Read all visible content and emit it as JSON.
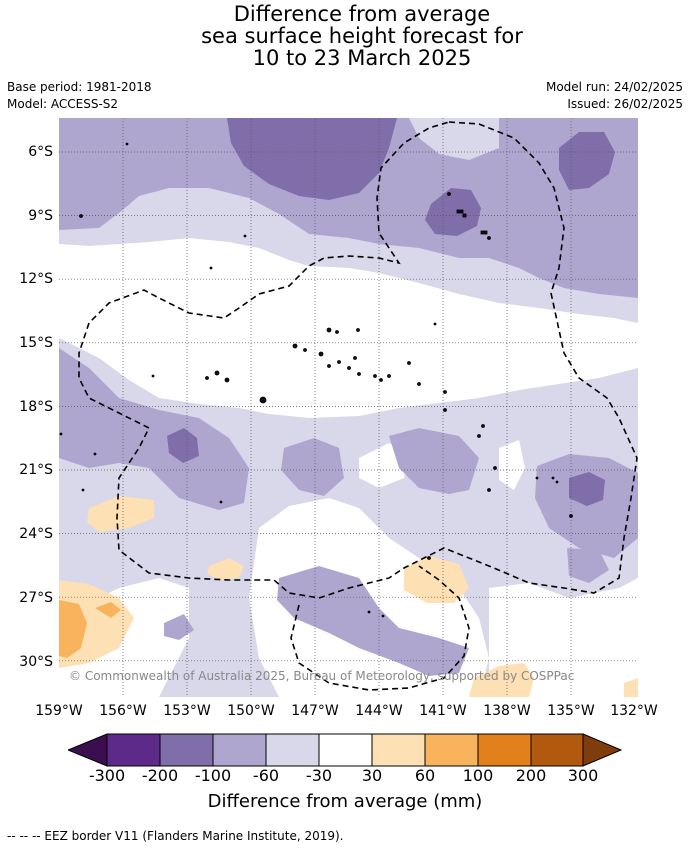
{
  "header": {
    "title_line1": "Difference from average",
    "title_line2": "sea surface height forecast for",
    "title_line3": "10 to 23 March 2025"
  },
  "meta": {
    "base_period": "Base period: 1981-2018",
    "model": "Model: ACCESS-S2",
    "model_run": "Model run: 24/02/2025",
    "issued": "Issued: 26/02/2025"
  },
  "map": {
    "lat_labels": [
      "6°S",
      "9°S",
      "12°S",
      "15°S",
      "18°S",
      "21°S",
      "24°S",
      "27°S",
      "30°S"
    ],
    "lon_labels": [
      "159°W",
      "156°W",
      "153°W",
      "150°W",
      "147°W",
      "144°W",
      "141°W",
      "138°W",
      "135°W",
      "132°W"
    ],
    "copyright": "© Commonwealth of Australia 2025, Bureau of Meteorology, supported by COSPPac"
  },
  "colorbar": {
    "ticks": [
      "-300",
      "-200",
      "-100",
      "-60",
      "-30",
      "30",
      "60",
      "100",
      "200",
      "300"
    ],
    "colors": [
      "#3b0f4f",
      "#5d2a8a",
      "#7f6ea9",
      "#aea6cf",
      "#d8d8ea",
      "#ffffff",
      "#fde0b3",
      "#f9b35c",
      "#e2811c",
      "#b1590f",
      "#7f3c0c"
    ],
    "title": "Difference from average (mm)"
  },
  "footer": {
    "legend": "--  --  -- EEZ border V11 (Flanders Marine Institute, 2019)."
  }
}
